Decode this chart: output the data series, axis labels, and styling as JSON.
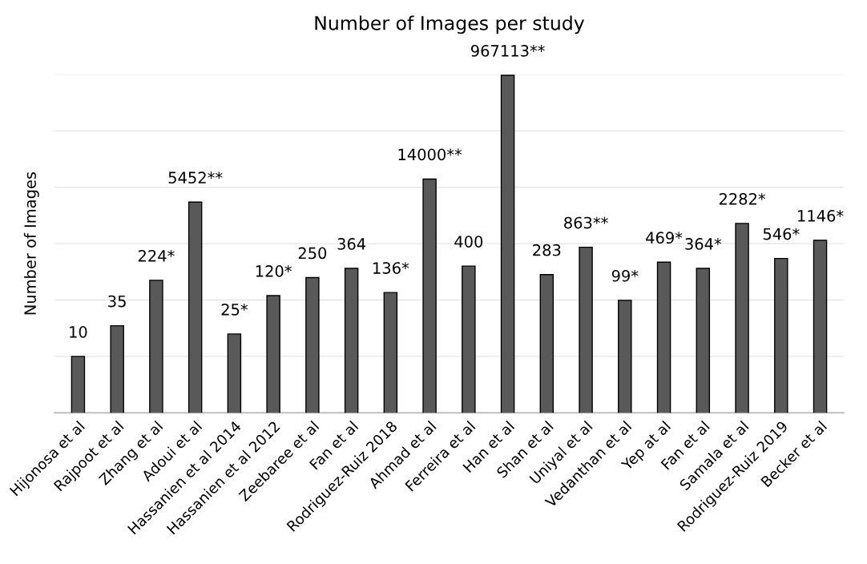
{
  "chart_data": {
    "type": "bar",
    "title": "Number of Images per study",
    "ylabel": "Number of Images",
    "categories": [
      "Hijonosa et al",
      "Rajpoot et al",
      "Zhang et al",
      "Adoui et al",
      "Hassanien et al 2014",
      "Hassanien et al 2012",
      "Zeebaree et al",
      "Fan et al",
      "Rodriguez-Ruiz 2018",
      "Ahmad et al",
      "Ferreira et al",
      "Han et al",
      "Shan et al",
      "Uniyal et al",
      "Vedanthan et al",
      "Yep at al",
      "Fan et al",
      "Samala et al",
      "Rodriguez-Ruiz 2019",
      "Becker et al"
    ],
    "values": [
      10,
      35,
      224,
      5452,
      25,
      120,
      250,
      364,
      136,
      14000,
      400,
      967113,
      283,
      863,
      99,
      469,
      364,
      2282,
      546,
      1146
    ],
    "value_labels": [
      "10",
      "35",
      "224*",
      "5452**",
      "25*",
      "120*",
      "250",
      "364",
      "136*",
      "14000**",
      "400",
      "967113**",
      "283",
      "863**",
      "99*",
      "469*",
      "364*",
      "2282*",
      "546*",
      "1146*"
    ],
    "color": "#595959",
    "log": true,
    "ylim": [
      1,
      1000000
    ],
    "yticks": [
      {
        "value": 1,
        "label": null
      },
      {
        "value": 10,
        "label": null
      },
      {
        "value": 100,
        "label": null
      },
      {
        "value": 1000,
        "label": null
      },
      {
        "value": 10000,
        "label": null
      },
      {
        "value": 100000,
        "label": null
      },
      {
        "value": 1000000,
        "label": null
      }
    ],
    "grid": "y",
    "tick_labels": "x"
  }
}
